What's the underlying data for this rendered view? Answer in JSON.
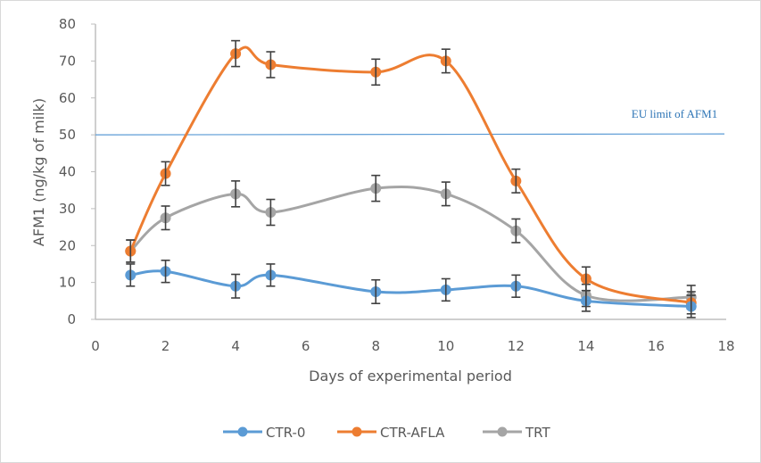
{
  "chart_data": {
    "type": "line",
    "title": "",
    "xlabel": "Days of experimental period",
    "ylabel": "AFM1 (ng/kg of milk)",
    "xlim": [
      0,
      18
    ],
    "ylim": [
      0,
      80
    ],
    "xticks": [
      0,
      2,
      4,
      6,
      8,
      10,
      12,
      14,
      16,
      18
    ],
    "yticks": [
      0,
      10,
      20,
      30,
      40,
      50,
      60,
      70,
      80
    ],
    "grid": false,
    "smooth": true,
    "legend_position": "bottom",
    "series": [
      {
        "name": "CTR-0",
        "color": "#5b9bd5",
        "x": [
          1,
          2,
          4,
          5,
          8,
          10,
          12,
          14,
          17
        ],
        "y": [
          12,
          13,
          9,
          12,
          7.5,
          8,
          9,
          5,
          3.5
        ],
        "error": [
          3,
          3,
          3.2,
          3,
          3.2,
          3,
          3,
          2.8,
          3
        ]
      },
      {
        "name": "CTR-AFLA",
        "color": "#ed7d31",
        "x": [
          1,
          2,
          4,
          5,
          8,
          10,
          12,
          14,
          17
        ],
        "y": [
          18.5,
          39.5,
          72,
          69,
          67,
          70,
          37.5,
          11,
          4.5
        ],
        "error": [
          3,
          3.2,
          3.5,
          3.5,
          3.5,
          3.2,
          3.2,
          3.2,
          3
        ]
      },
      {
        "name": "TRT",
        "color": "#a5a5a5",
        "x": [
          1,
          2,
          4,
          5,
          8,
          10,
          12,
          14,
          17
        ],
        "y": [
          18.5,
          27.5,
          34,
          29,
          35.5,
          34,
          24,
          6.5,
          6
        ],
        "error": [
          3,
          3.2,
          3.5,
          3.5,
          3.5,
          3.2,
          3.2,
          3,
          3.2
        ]
      }
    ],
    "reference_lines": [
      {
        "label": "EU limit  of AFM1",
        "y": 50,
        "color": "#5b9bd5",
        "label_color": "#2e75b6"
      }
    ],
    "axis_color": "#bfbfbf",
    "text_color": "#595959",
    "error_bar_color": "#404040"
  }
}
